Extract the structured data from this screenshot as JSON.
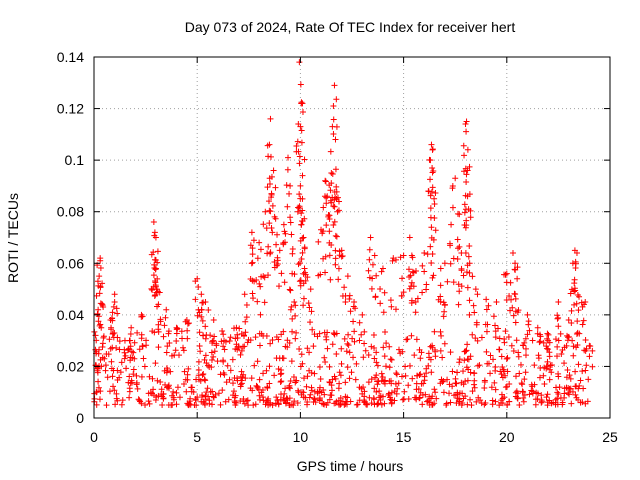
{
  "chart_data": {
    "type": "scatter",
    "title": "Day 073 of 2024, Rate Of TEC Index for receiver hert",
    "xlabel": "GPS time / hours",
    "ylabel": "ROTI / TECUs",
    "xlim": [
      0,
      25
    ],
    "ylim": [
      0,
      0.14
    ],
    "xticks": [
      0,
      5,
      10,
      15,
      20,
      25
    ],
    "xtick_labels": [
      "0",
      "5",
      "10",
      "15",
      "20",
      "25"
    ],
    "yticks": [
      0,
      0.02,
      0.04,
      0.06,
      0.08,
      0.1,
      0.12,
      0.14
    ],
    "ytick_labels": [
      "0",
      "0.02",
      "0.04",
      "0.06",
      "0.08",
      "0.1",
      "0.12",
      "0.14"
    ],
    "grid": true,
    "legend": false,
    "marker": "+",
    "color": "#ff0000",
    "series": [
      {
        "points": [
          [
            0.1,
            0.025
          ],
          [
            0.2,
            0.042
          ],
          [
            0.25,
            0.055
          ],
          [
            0.3,
            0.062
          ],
          [
            0.3,
            0.061
          ],
          [
            0.35,
            0.035
          ],
          [
            0.8,
            0.038
          ],
          [
            1.0,
            0.048
          ],
          [
            1.0,
            0.045
          ],
          [
            1.5,
            0.03
          ],
          [
            1.8,
            0.035
          ],
          [
            2.3,
            0.04
          ],
          [
            2.9,
            0.076
          ],
          [
            2.95,
            0.072
          ],
          [
            3.0,
            0.07
          ],
          [
            3.0,
            0.058
          ],
          [
            3.05,
            0.05
          ],
          [
            3.1,
            0.049
          ],
          [
            3.5,
            0.042
          ],
          [
            4.0,
            0.035
          ],
          [
            4.5,
            0.038
          ],
          [
            5.0,
            0.054
          ],
          [
            5.2,
            0.048
          ],
          [
            5.4,
            0.045
          ],
          [
            5.8,
            0.038
          ],
          [
            6.3,
            0.03
          ],
          [
            6.9,
            0.035
          ],
          [
            7.3,
            0.048
          ],
          [
            7.6,
            0.067
          ],
          [
            7.65,
            0.072
          ],
          [
            8.0,
            0.068
          ],
          [
            8.2,
            0.055
          ],
          [
            8.3,
            0.08
          ],
          [
            8.5,
            0.106
          ],
          [
            8.55,
            0.116
          ],
          [
            8.6,
            0.087
          ],
          [
            8.7,
            0.096
          ],
          [
            8.75,
            0.078
          ],
          [
            9.0,
            0.065
          ],
          [
            9.2,
            0.075
          ],
          [
            9.4,
            0.101
          ],
          [
            9.5,
            0.09
          ],
          [
            9.6,
            0.056
          ],
          [
            9.7,
            0.045
          ],
          [
            9.9,
            0.114
          ],
          [
            9.95,
            0.138
          ],
          [
            10.0,
            0.113
          ],
          [
            10.0,
            0.09
          ],
          [
            10.05,
            0.075
          ],
          [
            10.1,
            0.122
          ],
          [
            10.1,
            0.085
          ],
          [
            10.15,
            0.07
          ],
          [
            10.2,
            0.058
          ],
          [
            10.5,
            0.05
          ],
          [
            11.0,
            0.073
          ],
          [
            11.2,
            0.092
          ],
          [
            11.3,
            0.086
          ],
          [
            11.35,
            0.078
          ],
          [
            11.5,
            0.095
          ],
          [
            11.55,
            0.113
          ],
          [
            11.6,
            0.121
          ],
          [
            11.65,
            0.129
          ],
          [
            11.7,
            0.108
          ],
          [
            11.75,
            0.085
          ],
          [
            11.8,
            0.08
          ],
          [
            12.0,
            0.065
          ],
          [
            12.3,
            0.055
          ],
          [
            12.6,
            0.045
          ],
          [
            13.0,
            0.04
          ],
          [
            13.4,
            0.07
          ],
          [
            13.6,
            0.063
          ],
          [
            14.0,
            0.058
          ],
          [
            14.5,
            0.062
          ],
          [
            15.0,
            0.063
          ],
          [
            15.3,
            0.07
          ],
          [
            15.4,
            0.063
          ],
          [
            15.6,
            0.057
          ],
          [
            16.0,
            0.064
          ],
          [
            16.2,
            0.088
          ],
          [
            16.3,
            0.1
          ],
          [
            16.35,
            0.106
          ],
          [
            16.4,
            0.104
          ],
          [
            16.5,
            0.083
          ],
          [
            16.8,
            0.058
          ],
          [
            17.0,
            0.06
          ],
          [
            17.3,
            0.075
          ],
          [
            17.5,
            0.093
          ],
          [
            17.7,
            0.079
          ],
          [
            17.8,
            0.064
          ],
          [
            18.0,
            0.114
          ],
          [
            18.05,
            0.115
          ],
          [
            18.1,
            0.096
          ],
          [
            18.1,
            0.086
          ],
          [
            18.15,
            0.081
          ],
          [
            18.2,
            0.06
          ],
          [
            18.5,
            0.05
          ],
          [
            19.0,
            0.046
          ],
          [
            19.5,
            0.045
          ],
          [
            20.0,
            0.056
          ],
          [
            20.3,
            0.064
          ],
          [
            20.4,
            0.06
          ],
          [
            20.5,
            0.054
          ],
          [
            21.0,
            0.04
          ],
          [
            21.5,
            0.035
          ],
          [
            22.0,
            0.03
          ],
          [
            22.5,
            0.045
          ],
          [
            23.0,
            0.038
          ],
          [
            23.2,
            0.06
          ],
          [
            23.3,
            0.065
          ],
          [
            23.4,
            0.064
          ],
          [
            23.5,
            0.047
          ],
          [
            23.8,
            0.045
          ],
          [
            24.0,
            0.028
          ]
        ]
      }
    ],
    "baseline_band": {
      "x_range": [
        0,
        24
      ],
      "typical_y": [
        0.005,
        0.03
      ],
      "note": "dense"
    }
  }
}
